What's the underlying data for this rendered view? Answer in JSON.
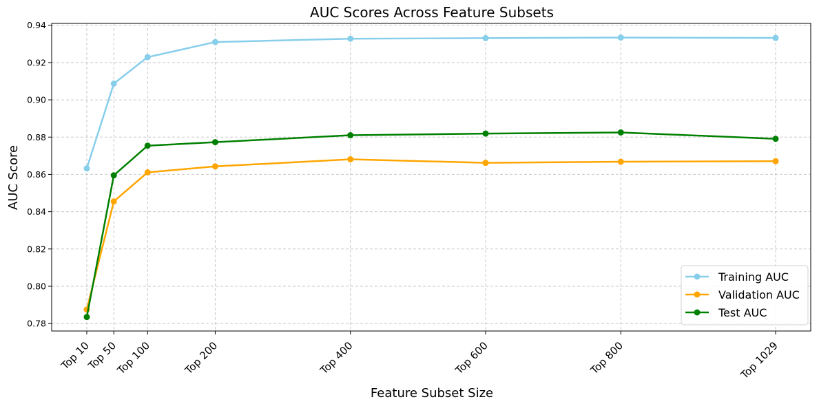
{
  "chart_data": {
    "type": "line",
    "title": "AUC Scores Across Feature Subsets",
    "xlabel": "Feature Subset Size",
    "ylabel": "AUC Score",
    "x": [
      10,
      50,
      100,
      200,
      400,
      600,
      800,
      1029
    ],
    "categories": [
      "Top 10",
      "Top 50",
      "Top 100",
      "Top 200",
      "Top 400",
      "Top 600",
      "Top 800",
      "Top 1029"
    ],
    "ylim": [
      0.776,
      0.941
    ],
    "yticks": [
      0.78,
      0.8,
      0.82,
      0.84,
      0.86,
      0.88,
      0.9,
      0.92,
      0.94
    ],
    "ytick_labels": [
      "0.78",
      "0.80",
      "0.82",
      "0.84",
      "0.86",
      "0.88",
      "0.90",
      "0.92",
      "0.94"
    ],
    "grid": true,
    "legend_position": "lower-right",
    "series": [
      {
        "name": "Training AUC",
        "color": "#87ceeb",
        "values": [
          0.8632,
          0.9087,
          0.9229,
          0.931,
          0.9328,
          0.9331,
          0.9334,
          0.9332
        ]
      },
      {
        "name": "Validation AUC",
        "color": "#ffa500",
        "values": [
          0.7875,
          0.8455,
          0.8611,
          0.8643,
          0.8681,
          0.8662,
          0.8668,
          0.8671
        ]
      },
      {
        "name": "Test AUC",
        "color": "#008000",
        "values": [
          0.7835,
          0.8595,
          0.8754,
          0.8773,
          0.881,
          0.8819,
          0.8825,
          0.8791
        ]
      }
    ]
  }
}
